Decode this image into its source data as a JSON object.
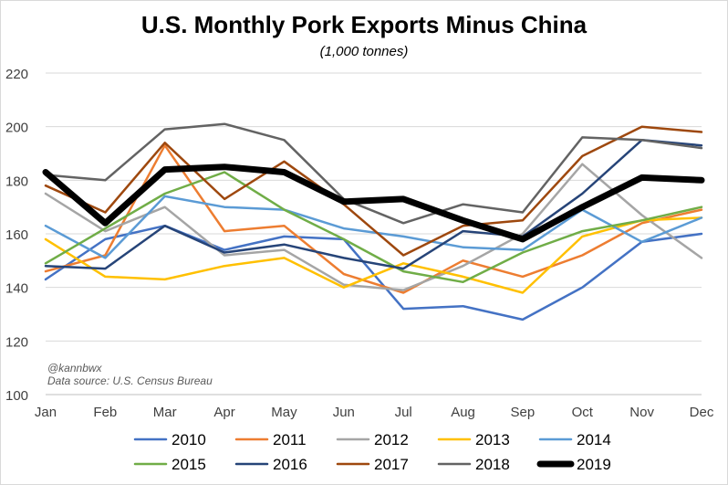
{
  "chart_data": {
    "type": "line",
    "title": "U.S. Monthly Pork Exports Minus China",
    "subtitle": "(1,000 tonnes)",
    "xlabel": "",
    "ylabel": "",
    "categories": [
      "Jan",
      "Feb",
      "Mar",
      "Apr",
      "May",
      "Jun",
      "Jul",
      "Aug",
      "Sep",
      "Oct",
      "Nov",
      "Dec"
    ],
    "ylim": [
      100,
      220
    ],
    "yticks": [
      "100",
      "120",
      "140",
      "160",
      "180",
      "200",
      "220"
    ],
    "grid": true,
    "legend_position": "bottom",
    "series": [
      {
        "name": "2010",
        "color": "#4472C4",
        "values": [
          143,
          158,
          163,
          154,
          159,
          158,
          132,
          133,
          128,
          140,
          157,
          160
        ]
      },
      {
        "name": "2011",
        "color": "#ED7D31",
        "values": [
          146,
          152,
          193,
          161,
          163,
          145,
          138,
          150,
          144,
          152,
          164,
          169
        ]
      },
      {
        "name": "2012",
        "color": "#A5A5A5",
        "values": [
          175,
          161,
          170,
          152,
          154,
          141,
          139,
          148,
          160,
          186,
          167,
          151
        ]
      },
      {
        "name": "2013",
        "color": "#FFC000",
        "values": [
          158,
          144,
          143,
          148,
          151,
          140,
          149,
          144,
          138,
          159,
          165,
          166
        ]
      },
      {
        "name": "2014",
        "color": "#5B9BD5",
        "values": [
          163,
          151,
          174,
          170,
          169,
          162,
          159,
          155,
          154,
          169,
          157,
          166
        ]
      },
      {
        "name": "2015",
        "color": "#70AD47",
        "values": [
          149,
          162,
          175,
          183,
          169,
          158,
          146,
          142,
          153,
          161,
          165,
          170
        ]
      },
      {
        "name": "2016",
        "color": "#264478",
        "values": [
          148,
          147,
          163,
          153,
          156,
          151,
          147,
          161,
          159,
          175,
          195,
          193
        ]
      },
      {
        "name": "2017",
        "color": "#9E480E",
        "values": [
          178,
          168,
          194,
          173,
          187,
          171,
          152,
          163,
          165,
          189,
          200,
          198
        ]
      },
      {
        "name": "2018",
        "color": "#636363",
        "values": [
          182,
          180,
          199,
          201,
          195,
          173,
          164,
          171,
          168,
          196,
          195,
          192
        ]
      },
      {
        "name": "2019",
        "color": "#000000",
        "values": [
          183,
          164,
          184,
          185,
          183,
          172,
          173,
          165,
          158,
          170,
          181,
          180
        ]
      }
    ]
  },
  "annotations": {
    "handle": "@kannbwx",
    "source": "Data source: U.S. Census Bureau"
  }
}
